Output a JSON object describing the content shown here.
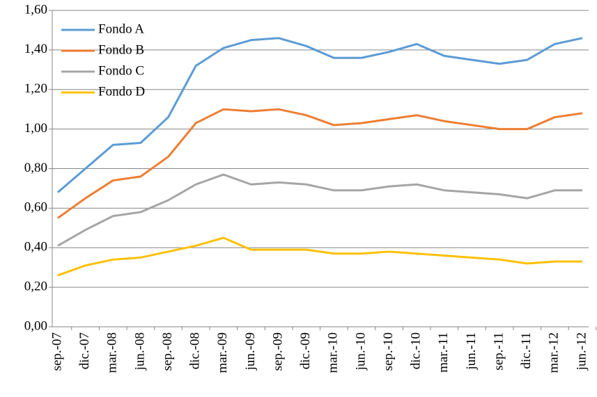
{
  "chart_data": {
    "type": "line",
    "categories": [
      "sep.-07",
      "dic.-07",
      "mar.-08",
      "jun.-08",
      "sep.-08",
      "dic.-08",
      "mar.-09",
      "jun.-09",
      "sep.-09",
      "dic.-09",
      "mar.-10",
      "jun.-10",
      "sep.-10",
      "dic.-10",
      "mar.-11",
      "jun.-11",
      "sep.-11",
      "dic.-11",
      "mar.-12",
      "jun.-12"
    ],
    "series": [
      {
        "name": "Fondo A",
        "color": "#5b9bd5",
        "values": [
          0.68,
          0.8,
          0.92,
          0.93,
          1.06,
          1.32,
          1.41,
          1.45,
          1.46,
          1.42,
          1.36,
          1.36,
          1.39,
          1.43,
          1.37,
          1.35,
          1.33,
          1.35,
          1.43,
          1.46
        ]
      },
      {
        "name": "Fondo B",
        "color": "#ed7d31",
        "values": [
          0.55,
          0.65,
          0.74,
          0.76,
          0.86,
          1.03,
          1.1,
          1.09,
          1.1,
          1.07,
          1.02,
          1.03,
          1.05,
          1.07,
          1.04,
          1.02,
          1.0,
          1.0,
          1.06,
          1.08
        ]
      },
      {
        "name": "Fondo C",
        "color": "#a5a5a5",
        "values": [
          0.41,
          0.49,
          0.56,
          0.58,
          0.64,
          0.72,
          0.77,
          0.72,
          0.73,
          0.72,
          0.69,
          0.69,
          0.71,
          0.72,
          0.69,
          0.68,
          0.67,
          0.65,
          0.69,
          0.69
        ]
      },
      {
        "name": "Fondo D",
        "color": "#ffc000",
        "values": [
          0.26,
          0.31,
          0.34,
          0.35,
          0.38,
          0.41,
          0.45,
          0.39,
          0.39,
          0.39,
          0.37,
          0.37,
          0.38,
          0.37,
          0.36,
          0.35,
          0.34,
          0.32,
          0.33,
          0.33
        ]
      }
    ],
    "ylim": [
      0,
      1.6
    ],
    "yticks": [
      {
        "value": 0,
        "label": "0,00"
      },
      {
        "value": 0.2,
        "label": "0,20"
      },
      {
        "value": 0.4,
        "label": "0,40"
      },
      {
        "value": 0.6,
        "label": "0,60"
      },
      {
        "value": 0.8,
        "label": "0,80"
      },
      {
        "value": 1.0,
        "label": "1,00"
      },
      {
        "value": 1.2,
        "label": "1,20"
      },
      {
        "value": 1.4,
        "label": "1,40"
      },
      {
        "value": 1.6,
        "label": "1,60"
      }
    ],
    "grid": true,
    "legend": "upper-left"
  }
}
